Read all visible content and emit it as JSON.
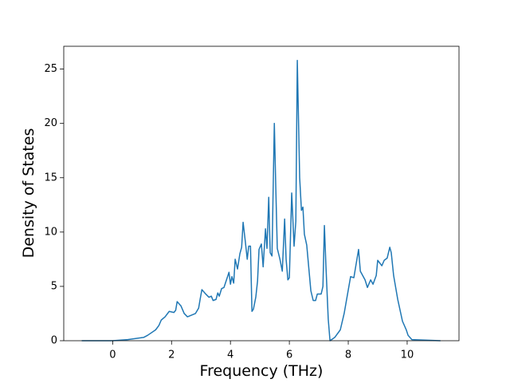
{
  "chart_data": {
    "type": "line",
    "xlabel": "Frequency (THz)",
    "ylabel": "Density of States",
    "color": "#1f77b4",
    "x": [
      -1.05,
      0,
      0.51,
      1.05,
      1.19,
      1.46,
      1.57,
      1.65,
      1.78,
      1.92,
      2.08,
      2.14,
      2.19,
      2.32,
      2.43,
      2.54,
      2.81,
      2.92,
      2.97,
      3.03,
      3.16,
      3.27,
      3.35,
      3.41,
      3.51,
      3.57,
      3.62,
      3.7,
      3.78,
      3.89,
      3.95,
      4.0,
      4.05,
      4.11,
      4.16,
      4.24,
      4.32,
      4.38,
      4.43,
      4.51,
      4.57,
      4.62,
      4.68,
      4.73,
      4.78,
      4.86,
      4.92,
      4.97,
      5.05,
      5.11,
      5.19,
      5.24,
      5.3,
      5.35,
      5.41,
      5.49,
      5.54,
      5.59,
      5.68,
      5.76,
      5.84,
      5.89,
      5.95,
      6.0,
      6.08,
      6.16,
      6.22,
      6.27,
      6.35,
      6.41,
      6.46,
      6.51,
      6.59,
      6.73,
      6.81,
      6.89,
      6.95,
      7.08,
      7.14,
      7.19,
      7.24,
      7.32,
      7.38,
      7.54,
      7.73,
      7.86,
      8.08,
      8.19,
      8.35,
      8.41,
      8.57,
      8.65,
      8.76,
      8.84,
      8.95,
      9.0,
      9.14,
      9.22,
      9.32,
      9.41,
      9.46,
      9.54,
      9.68,
      9.84,
      9.97,
      10.03,
      10.16,
      11.13
    ],
    "values": [
      0,
      0,
      0.1,
      0.3,
      0.5,
      1.0,
      1.4,
      1.9,
      2.2,
      2.7,
      2.6,
      2.8,
      3.6,
      3.2,
      2.5,
      2.2,
      2.5,
      3.0,
      3.8,
      4.7,
      4.3,
      4.0,
      4.1,
      3.7,
      3.8,
      4.4,
      4.1,
      4.8,
      4.9,
      5.8,
      6.3,
      5.2,
      5.9,
      5.3,
      7.5,
      6.6,
      8.0,
      8.6,
      10.9,
      9.0,
      7.5,
      8.7,
      8.7,
      2.7,
      2.9,
      4.0,
      5.5,
      8.4,
      8.9,
      6.8,
      10.3,
      8.5,
      13.2,
      8.1,
      7.8,
      20.0,
      14.0,
      8.5,
      7.5,
      6.4,
      11.2,
      7.5,
      5.6,
      5.8,
      13.6,
      8.7,
      11.0,
      25.8,
      15.0,
      12.0,
      12.3,
      9.8,
      8.8,
      4.6,
      3.7,
      3.7,
      4.3,
      4.3,
      5.0,
      10.6,
      7.0,
      2.0,
      0,
      0.3,
      1.0,
      2.5,
      5.9,
      5.8,
      8.4,
      6.4,
      5.6,
      4.9,
      5.6,
      5.2,
      6.0,
      7.4,
      6.9,
      7.4,
      7.6,
      8.6,
      8.1,
      6.0,
      3.8,
      1.8,
      1.0,
      0.5,
      0.1,
      0
    ],
    "xlim": [
      -1.66,
      11.76
    ],
    "ylim": [
      0,
      27.1
    ],
    "xticks": [
      0,
      2,
      4,
      6,
      8,
      10
    ],
    "yticks": [
      0,
      5,
      10,
      15,
      20,
      25
    ]
  }
}
